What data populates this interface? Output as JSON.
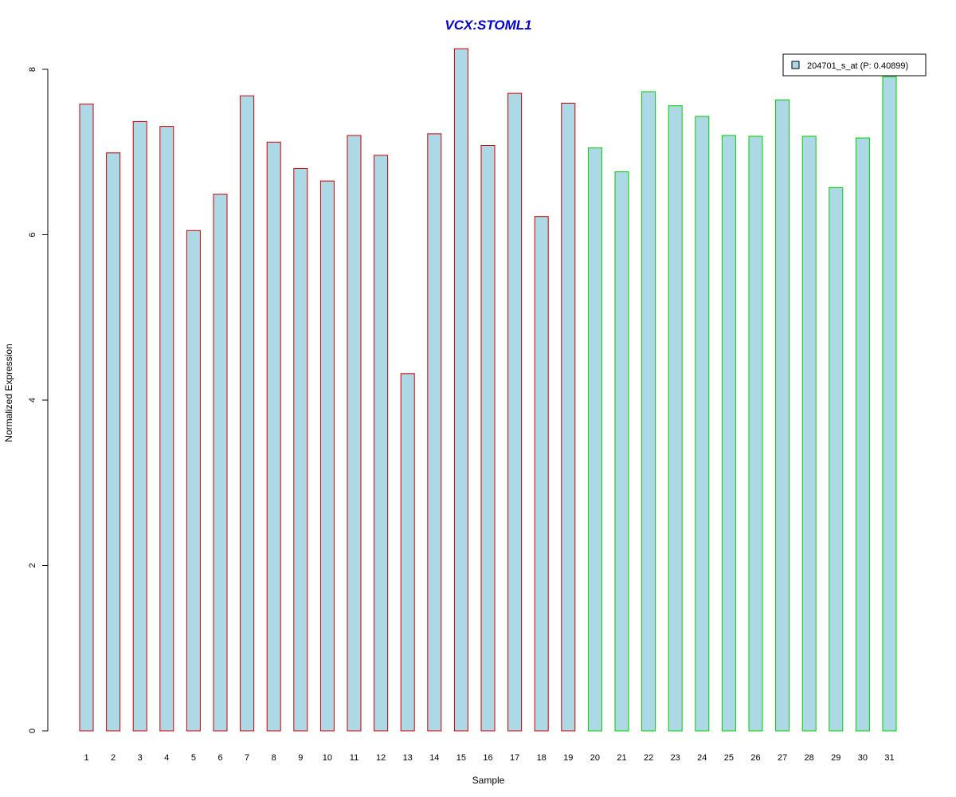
{
  "chart_data": {
    "type": "bar",
    "title": "VCX:STOML1",
    "xlabel": "Sample",
    "ylabel": "Normalized Expression",
    "ylim": [
      0,
      8.3
    ],
    "yticks": [
      0,
      2,
      4,
      6,
      8
    ],
    "grid": false,
    "legend_position": "top-right",
    "legend": {
      "label": "204701_s_at (P: 0.40899)",
      "swatch_color": "#add8e6"
    },
    "bar_fill": "#add8e6",
    "categories": [
      "1",
      "2",
      "3",
      "4",
      "5",
      "6",
      "7",
      "8",
      "9",
      "10",
      "11",
      "12",
      "13",
      "14",
      "15",
      "16",
      "17",
      "18",
      "19",
      "20",
      "21",
      "22",
      "23",
      "24",
      "25",
      "26",
      "27",
      "28",
      "29",
      "30",
      "31"
    ],
    "values": [
      7.58,
      6.99,
      7.37,
      7.31,
      6.05,
      6.49,
      7.68,
      7.12,
      6.8,
      6.65,
      7.2,
      6.96,
      4.32,
      7.22,
      8.25,
      7.08,
      7.71,
      6.22,
      7.59,
      7.05,
      6.76,
      7.73,
      7.56,
      7.43,
      7.2,
      7.19,
      7.63,
      7.19,
      6.57,
      7.17,
      7.91
    ],
    "groups": [
      {
        "samples": "1-19",
        "border_color": "#cc0000"
      },
      {
        "samples": "20-31",
        "border_color": "#00cc00"
      }
    ],
    "group_index": [
      0,
      0,
      0,
      0,
      0,
      0,
      0,
      0,
      0,
      0,
      0,
      0,
      0,
      0,
      0,
      0,
      0,
      0,
      0,
      1,
      1,
      1,
      1,
      1,
      1,
      1,
      1,
      1,
      1,
      1,
      1
    ]
  }
}
